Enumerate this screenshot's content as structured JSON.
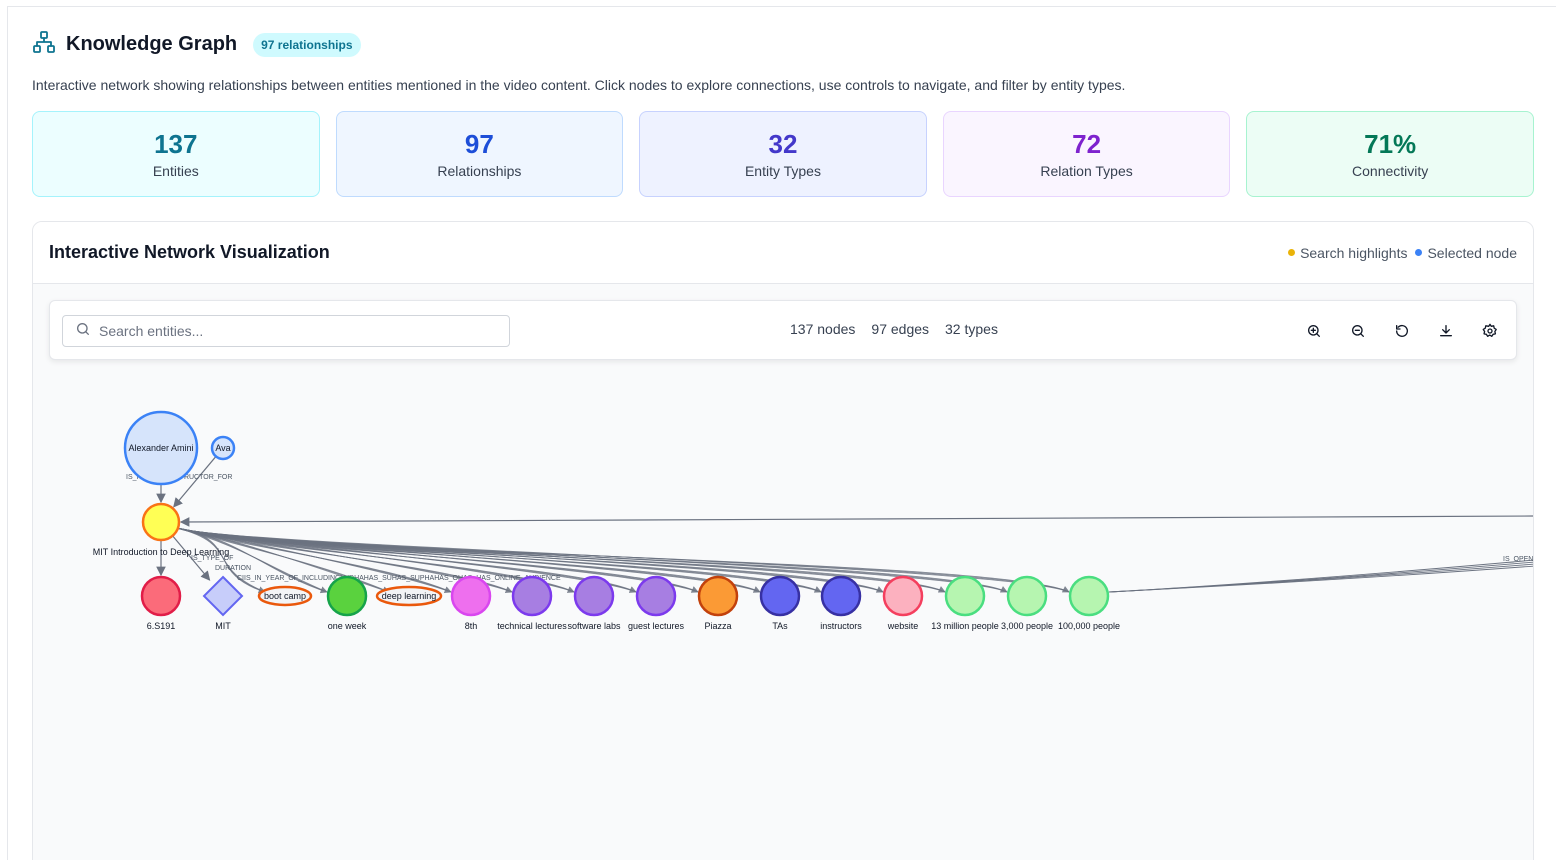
{
  "header": {
    "title": "Knowledge Graph",
    "badge": "97 relationships"
  },
  "description": "Interactive network showing relationships between entities mentioned in the video content. Click nodes to explore connections, use controls to navigate, and filter by entity types.",
  "stats": [
    {
      "value": "137",
      "label": "Entities",
      "color": "#0e7490"
    },
    {
      "value": "97",
      "label": "Relationships",
      "color": "#1d4ed8"
    },
    {
      "value": "32",
      "label": "Entity Types",
      "color": "#4338ca"
    },
    {
      "value": "72",
      "label": "Relation Types",
      "color": "#7e22ce"
    },
    {
      "value": "71%",
      "label": "Connectivity",
      "color": "#047857"
    }
  ],
  "viz": {
    "title": "Interactive Network Visualization",
    "legend": [
      {
        "label": "Search highlights",
        "color": "#eab308"
      },
      {
        "label": "Selected node",
        "color": "#3b82f6"
      }
    ],
    "search_placeholder": "Search entities...",
    "counts": {
      "nodes": "137 nodes",
      "edges": "97 edges",
      "types": "32 types"
    },
    "tools": [
      "zoom-in-icon",
      "zoom-out-icon",
      "reset-icon",
      "download-icon",
      "settings-icon"
    ]
  },
  "graph": {
    "nodes": [
      {
        "id": "alexander",
        "label": "Alexander Amini",
        "shape": "circle",
        "fill": "#d6e4fb",
        "stroke": "#3b82f6"
      },
      {
        "id": "ava",
        "label": "Ava",
        "shape": "circle",
        "fill": "#d6e4fb",
        "stroke": "#3b82f6"
      },
      {
        "id": "mit_intro",
        "label": "MIT Introduction to Deep Learning",
        "shape": "circle",
        "fill": "#ffff55",
        "stroke": "#f97316"
      },
      {
        "id": "6s191",
        "label": "6.S191",
        "shape": "circle",
        "fill": "#fb6b7a",
        "stroke": "#e11d48"
      },
      {
        "id": "mit",
        "label": "MIT",
        "shape": "diamond",
        "fill": "#c7cdfa",
        "stroke": "#6366f1"
      },
      {
        "id": "boot_camp",
        "label": "boot camp",
        "shape": "ellipse",
        "fill": "#f3f4f6",
        "stroke": "#ea580c"
      },
      {
        "id": "one_week",
        "label": "one week",
        "shape": "circle",
        "fill": "#5ad23e",
        "stroke": "#16a34a"
      },
      {
        "id": "deep_learning",
        "label": "deep learning",
        "shape": "ellipse",
        "fill": "#f3f4f6",
        "stroke": "#ea580c"
      },
      {
        "id": "8th",
        "label": "8th",
        "shape": "circle",
        "fill": "#ee6fee",
        "stroke": "#d946ef"
      },
      {
        "id": "technical_lectures",
        "label": "technical lectures",
        "shape": "circle",
        "fill": "#a77ee2",
        "stroke": "#7c3aed"
      },
      {
        "id": "software_labs",
        "label": "software labs",
        "shape": "circle",
        "fill": "#a77ee2",
        "stroke": "#7c3aed"
      },
      {
        "id": "guest_lectures",
        "label": "guest lectures",
        "shape": "circle",
        "fill": "#a77ee2",
        "stroke": "#7c3aed"
      },
      {
        "id": "piazza",
        "label": "Piazza",
        "shape": "circle",
        "fill": "#fb9a35",
        "stroke": "#c2410c"
      },
      {
        "id": "tas",
        "label": "TAs",
        "shape": "circle",
        "fill": "#6366f1",
        "stroke": "#3730a3"
      },
      {
        "id": "instructors",
        "label": "instructors",
        "shape": "circle",
        "fill": "#6366f1",
        "stroke": "#3730a3"
      },
      {
        "id": "website",
        "label": "website",
        "shape": "circle",
        "fill": "#fcb1bf",
        "stroke": "#f43f5e"
      },
      {
        "id": "13m",
        "label": "13 million people",
        "shape": "circle",
        "fill": "#b6f5b0",
        "stroke": "#4ade80"
      },
      {
        "id": "3000",
        "label": "3,000 people",
        "shape": "circle",
        "fill": "#b6f5b0",
        "stroke": "#4ade80"
      },
      {
        "id": "100000",
        "label": "100,000 people",
        "shape": "circle",
        "fill": "#b6f5b0",
        "stroke": "#4ade80"
      }
    ],
    "edge_labels": [
      "IS_I",
      "STRUCTOR_FOR",
      "IS_TYPE_OF",
      "DURATION",
      "CIIS_IN_YEAR_OF_INCLUDINCLUDHAHAS_SUHAS_SUPHAHAS_OHAS_HAS_ONLINE_AUDIENCE",
      "IS_OPEN_"
    ]
  }
}
